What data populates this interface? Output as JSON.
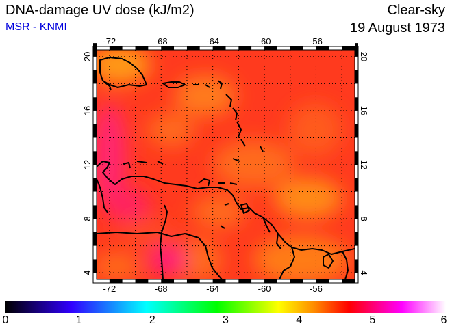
{
  "header": {
    "title": "DNA-damage UV dose (kJ/m2)",
    "source": "MSR - KNMI",
    "condition": "Clear-sky",
    "date": "19 August 1973"
  },
  "map": {
    "lon_range": [
      -73,
      -53
    ],
    "lat_range": [
      3.5,
      20.5
    ],
    "lon_ticks": [
      "-72",
      "-68",
      "-64",
      "-60",
      "-56"
    ],
    "lat_ticks": [
      "20",
      "16",
      "12",
      "8",
      "4"
    ],
    "gridlines": "dotted",
    "coastline_color": "#000000"
  },
  "colorbar": {
    "range": [
      0,
      6
    ],
    "labels": [
      "0",
      "1",
      "2",
      "3",
      "4",
      "5",
      "6"
    ],
    "colors": [
      "#000000",
      "#2000ff",
      "#00ffff",
      "#00ff00",
      "#ffff00",
      "#ff8000",
      "#ff0000",
      "#ff00ff",
      "#ffffff"
    ]
  }
}
